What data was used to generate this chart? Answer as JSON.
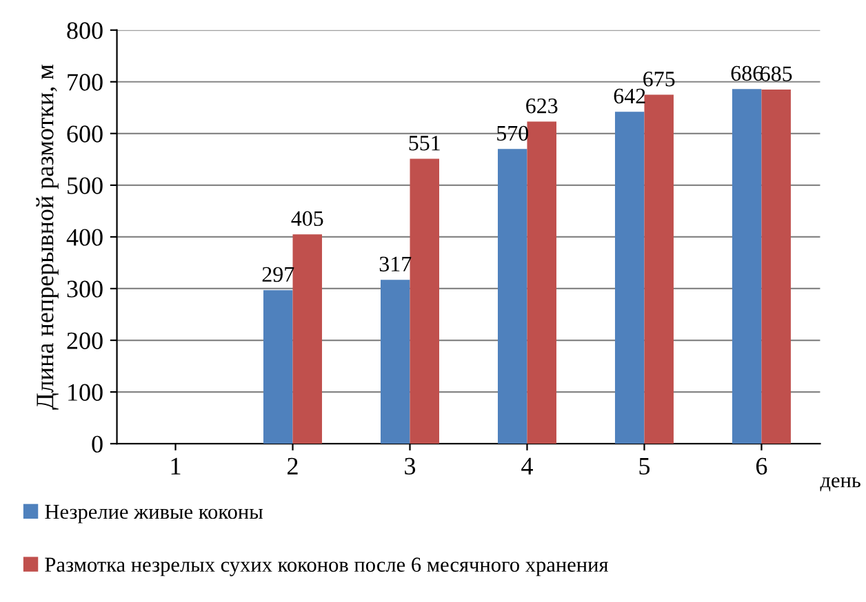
{
  "chart_data": {
    "type": "bar",
    "ylabel": "Длина непрерывной размотки, м",
    "xlabel": "день",
    "categories": [
      "1",
      "2",
      "3",
      "4",
      "5",
      "6"
    ],
    "series": [
      {
        "name": "Незрелие живые коконы",
        "color": "#4f81bd",
        "values": [
          null,
          297,
          317,
          570,
          642,
          686
        ]
      },
      {
        "name": "Размотка незрелых сухих коконов после 6 месячного хранения",
        "color": "#c0504d",
        "values": [
          null,
          405,
          551,
          623,
          675,
          685
        ]
      }
    ],
    "ylim": [
      0,
      800
    ],
    "yticks": [
      0,
      100,
      200,
      300,
      400,
      500,
      600,
      700,
      800
    ],
    "grid": "y",
    "legend": "bottom",
    "data_labels": true
  }
}
